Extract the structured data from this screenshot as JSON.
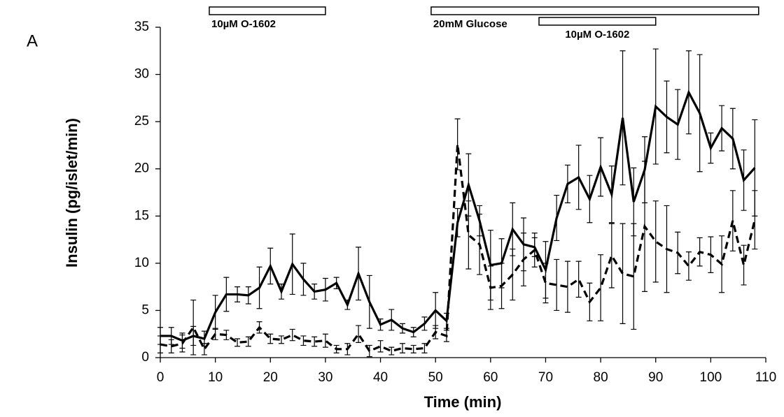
{
  "chart_data": {
    "type": "line",
    "panel_label": "A",
    "x_label": "Time (min)",
    "y_label": "Insulin (pg/islet/min)",
    "x": [
      0,
      2,
      4,
      6,
      8,
      10,
      12,
      14,
      16,
      18,
      20,
      22,
      24,
      26,
      28,
      30,
      32,
      34,
      36,
      38,
      40,
      42,
      44,
      46,
      48,
      50,
      52,
      54,
      56,
      58,
      60,
      62,
      64,
      66,
      68,
      70,
      72,
      74,
      76,
      78,
      80,
      82,
      84,
      86,
      88,
      90,
      92,
      94,
      96,
      98,
      100,
      102,
      104,
      106,
      108
    ],
    "series": [
      {
        "color": "#000000",
        "style": "solid",
        "values": [
          2.3,
          2.3,
          1.8,
          2.3,
          2.0,
          4.8,
          6.7,
          6.7,
          6.6,
          7.4,
          9.7,
          7.0,
          9.9,
          8.3,
          7.0,
          7.2,
          7.9,
          5.6,
          8.9,
          5.9,
          3.5,
          4.0,
          3.1,
          2.7,
          3.6,
          5.0,
          3.9,
          14.3,
          18.3,
          14.5,
          9.8,
          10.0,
          13.6,
          12.0,
          11.7,
          9.3,
          14.8,
          18.4,
          19.1,
          16.8,
          20.2,
          17.3,
          25.4,
          16.5,
          19.9,
          26.6,
          25.5,
          24.7,
          28.1,
          25.9,
          22.2,
          24.3,
          23.2,
          18.8,
          20.1
        ],
        "errors": [
          0.9,
          0.9,
          0.8,
          1.0,
          0.8,
          1.8,
          1.8,
          0.8,
          0.9,
          2.2,
          1.9,
          0.8,
          3.2,
          1.7,
          0.8,
          1.2,
          0.6,
          0.5,
          2.8,
          2.8,
          0.6,
          1.1,
          0.5,
          0.5,
          0.7,
          1.9,
          0.8,
          1.5,
          3.3,
          1.6,
          3.7,
          2.6,
          2.8,
          2.8,
          1.0,
          3.0,
          2.4,
          2.0,
          3.4,
          2.5,
          3.1,
          3.0,
          7.1,
          3.6,
          3.5,
          6.1,
          3.8,
          3.7,
          4.4,
          6.2,
          1.6,
          2.4,
          3.2,
          3.2,
          5.1
        ]
      },
      {
        "color": "#000000",
        "style": "dashed",
        "values": [
          1.4,
          1.2,
          1.5,
          3.2,
          0.9,
          2.5,
          2.4,
          1.6,
          1.7,
          3.2,
          2.0,
          1.9,
          2.4,
          1.8,
          1.7,
          1.8,
          0.9,
          0.9,
          2.5,
          0.7,
          1.2,
          0.7,
          1.0,
          0.9,
          1.0,
          2.7,
          2.3,
          22.6,
          13.0,
          12.0,
          7.4,
          7.6,
          8.8,
          10.4,
          11.4,
          7.9,
          7.7,
          7.5,
          8.3,
          5.9,
          7.4,
          10.8,
          8.9,
          8.6,
          13.9,
          12.3,
          11.5,
          11.1,
          9.7,
          11.2,
          10.9,
          9.9,
          14.5,
          9.8,
          14.6
        ],
        "errors": [
          0.9,
          0.7,
          0.9,
          2.9,
          0.6,
          0.6,
          0.5,
          0.4,
          0.5,
          0.6,
          0.5,
          0.4,
          0.6,
          0.5,
          0.5,
          0.7,
          0.4,
          0.6,
          0.9,
          0.6,
          0.6,
          0.4,
          0.5,
          0.4,
          0.5,
          0.7,
          0.6,
          2.7,
          3.6,
          3.2,
          2.3,
          2.4,
          2.7,
          2.8,
          1.8,
          2.1,
          2.7,
          2.7,
          1.9,
          2.0,
          3.5,
          3.4,
          5.3,
          5.6,
          6.9,
          4.3,
          4.6,
          2.2,
          1.5,
          1.5,
          1.9,
          3.0,
          3.2,
          2.1,
          3.1
        ]
      }
    ],
    "annotations": [
      {
        "text": "10µM O-1602",
        "x": [
          8.9,
          30
        ]
      },
      {
        "text": "20mM Glucose",
        "x": [
          49.2,
          108.7
        ]
      },
      {
        "text": "10µM O-1602",
        "x": [
          68.8,
          90
        ]
      }
    ],
    "xlim": [
      0,
      110
    ],
    "xticks": [
      0,
      10,
      20,
      30,
      40,
      50,
      60,
      70,
      80,
      90,
      100,
      110
    ],
    "ylim": [
      0,
      35
    ],
    "yticks": [
      0,
      5,
      10,
      15,
      20,
      25,
      30,
      35
    ],
    "grid": false
  }
}
